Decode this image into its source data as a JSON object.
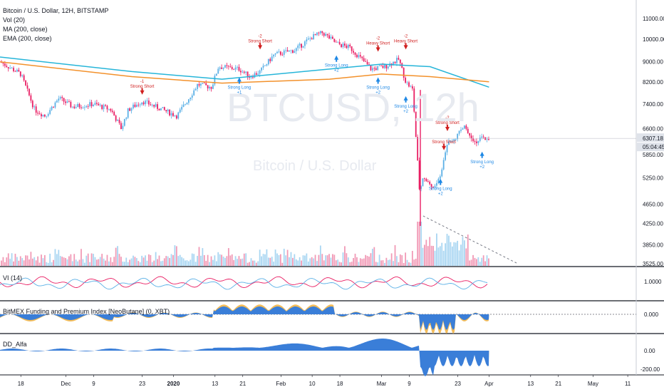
{
  "header": {
    "title": "Bitcoin / U.S. Dollar, 12H, BITSTAMP",
    "indicators": [
      "Vol (20)",
      "MA (200, close)",
      "EMA (200, close)"
    ]
  },
  "watermark": {
    "symbol": "BTCUSD, 12h",
    "sub": "Bitcoin / U.S. Dollar"
  },
  "price_axis": {
    "ticks": [
      "11000.00",
      "10000.00",
      "9000.00",
      "8200.00",
      "7400.00",
      "6600.00",
      "6307.18",
      "05:04:45",
      "5850.00",
      "5250.00",
      "4650.00",
      "4250.00",
      "3850.00",
      "3525.00"
    ],
    "current_price": "6307.18",
    "countdown": "05:04:45"
  },
  "panes": {
    "vi": {
      "label": "VI (14)",
      "ticks": [
        "1.0000"
      ]
    },
    "funding": {
      "label": "BitMEX Funding and Premium Index [NeoButane] (0, XBT)",
      "ticks": [
        "0.000"
      ]
    },
    "dd": {
      "label": "DD_Alfa",
      "ticks": [
        "0.00",
        "-200.00"
      ]
    }
  },
  "time_axis": [
    "18",
    "Dec",
    "9",
    "23",
    "2020",
    "13",
    "21",
    "Feb",
    "10",
    "18",
    "Mar",
    "9",
    "23",
    "Apr",
    "13",
    "21",
    "May",
    "11"
  ],
  "signals": [
    {
      "type": "short",
      "top": "-1",
      "label": "Strong Short"
    },
    {
      "type": "short",
      "top": "-2",
      "label": "Strong Short"
    },
    {
      "type": "long",
      "label": "Strong Long",
      "bottom": "+1"
    },
    {
      "type": "long",
      "label": "Strong Long",
      "bottom": "+2"
    },
    {
      "type": "short",
      "top": "-2",
      "label": "Heavy Short"
    },
    {
      "type": "long",
      "label": "Strong Long",
      "bottom": "+2"
    },
    {
      "type": "short",
      "top": "-2",
      "label": "Heavy Short"
    },
    {
      "type": "long",
      "label": "Strong Long",
      "bottom": "+2"
    },
    {
      "type": "long",
      "label": "Strong Long",
      "bottom": "+2"
    },
    {
      "type": "short",
      "top": "-2",
      "label": "Strong Short"
    },
    {
      "type": "short",
      "top": "",
      "label": "Strong Short"
    },
    {
      "type": "long",
      "label": "Strong Long",
      "bottom": "+2"
    }
  ],
  "chart_data": {
    "type": "candlestick",
    "symbol": "BTCUSD",
    "interval": "12H",
    "exchange": "BITSTAMP",
    "close_path": [
      [
        "2019-11-12",
        9000
      ],
      [
        "2019-11-18",
        8500
      ],
      [
        "2019-11-22",
        7200
      ],
      [
        "2019-11-25",
        7000
      ],
      [
        "2019-11-29",
        7600
      ],
      [
        "2019-12-03",
        7300
      ],
      [
        "2019-12-09",
        7400
      ],
      [
        "2019-12-14",
        7200
      ],
      [
        "2019-12-17",
        6600
      ],
      [
        "2019-12-19",
        7200
      ],
      [
        "2019-12-23",
        7500
      ],
      [
        "2019-12-27",
        7300
      ],
      [
        "2020-01-02",
        7000
      ],
      [
        "2020-01-06",
        7700
      ],
      [
        "2020-01-08",
        8100
      ],
      [
        "2020-01-12",
        8000
      ],
      [
        "2020-01-14",
        8800
      ],
      [
        "2020-01-20",
        8700
      ],
      [
        "2020-01-23",
        8400
      ],
      [
        "2020-01-26",
        8600
      ],
      [
        "2020-01-30",
        9300
      ],
      [
        "2020-02-05",
        9500
      ],
      [
        "2020-02-10",
        10100
      ],
      [
        "2020-02-13",
        10300
      ],
      [
        "2020-02-17",
        9800
      ],
      [
        "2020-02-21",
        9600
      ],
      [
        "2020-02-25",
        9000
      ],
      [
        "2020-02-27",
        8700
      ],
      [
        "2020-03-02",
        8800
      ],
      [
        "2020-03-06",
        9100
      ],
      [
        "2020-03-08",
        8200
      ],
      [
        "2020-03-10",
        7900
      ],
      [
        "2020-03-12",
        4900
      ],
      [
        "2020-03-13",
        5300
      ],
      [
        "2020-03-16",
        5000
      ],
      [
        "2020-03-18",
        5300
      ],
      [
        "2020-03-20",
        6200
      ],
      [
        "2020-03-23",
        6400
      ],
      [
        "2020-03-25",
        6700
      ],
      [
        "2020-03-28",
        6200
      ],
      [
        "2020-03-30",
        6300
      ],
      [
        "2020-04-01",
        6307
      ]
    ],
    "lows": [
      [
        "2020-03-13",
        4200
      ]
    ],
    "highs": [
      [
        "2020-03-19",
        6900
      ],
      [
        "2020-03-26",
        6950
      ]
    ],
    "ma200": [
      [
        "2019-11-12",
        9200
      ],
      [
        "2019-12-20",
        8600
      ],
      [
        "2020-01-15",
        8300
      ],
      [
        "2020-02-15",
        8700
      ],
      [
        "2020-03-01",
        8900
      ],
      [
        "2020-03-15",
        8800
      ],
      [
        "2020-04-01",
        8000
      ]
    ],
    "ema200": [
      [
        "2019-11-12",
        9000
      ],
      [
        "2019-12-20",
        8400
      ],
      [
        "2020-01-15",
        8150
      ],
      [
        "2020-02-15",
        8300
      ],
      [
        "2020-03-01",
        8500
      ],
      [
        "2020-03-15",
        8400
      ],
      [
        "2020-04-01",
        8200
      ]
    ],
    "price_range": [
      3525,
      11400
    ],
    "colors": {
      "up": "#5bb0e6",
      "down": "#e91e63",
      "ma": "#26b5d9",
      "ema": "#f3912b",
      "fund_blue": "#3a7ed8",
      "fund_orange": "#f3bc59"
    }
  }
}
